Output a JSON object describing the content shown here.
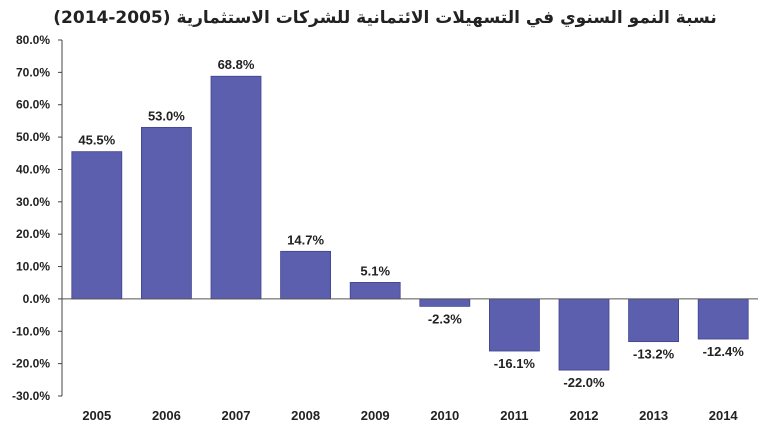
{
  "chart_data": {
    "type": "bar",
    "title": "نسبة النمو السنوي في التسهيلات الائتمانية للشركات الاستثمارية (2005-2014)",
    "categories": [
      "2005",
      "2006",
      "2007",
      "2008",
      "2009",
      "2010",
      "2011",
      "2012",
      "2013",
      "2014"
    ],
    "values": [
      45.5,
      53.0,
      68.8,
      14.7,
      5.1,
      -2.3,
      -16.1,
      -22.0,
      -13.2,
      -12.4
    ],
    "value_labels": [
      "45.5%",
      "53.0%",
      "68.8%",
      "14.7%",
      "5.1%",
      "-2.3%",
      "-16.1%",
      "-22.0%",
      "-13.2%",
      "-12.4%"
    ],
    "y_ticks": [
      "80.0%",
      "70.0%",
      "60.0%",
      "50.0%",
      "40.0%",
      "30.0%",
      "20.0%",
      "10.0%",
      "0.0%",
      "-10.0%",
      "-20.0%",
      "-30.0%"
    ],
    "ylim": [
      -30,
      80
    ],
    "xlabel": "",
    "ylabel": "",
    "grid": false,
    "bar_color": "#5b5fad",
    "bar_edge_color": "#3f4390"
  }
}
